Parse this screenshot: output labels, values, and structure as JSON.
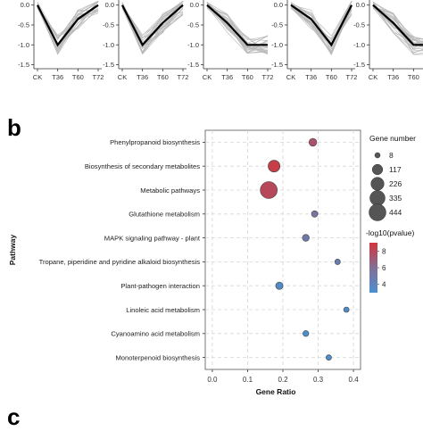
{
  "panel_b": {
    "label": "b"
  },
  "panel_c": {
    "label": "c"
  },
  "chart_data": [
    {
      "type": "line",
      "panel": "a",
      "categories": [
        "CK",
        "T36",
        "T60",
        "T72"
      ],
      "y_ticks": [
        0.0,
        -0.5,
        -1.0,
        -1.5
      ],
      "tick_labels": [
        "0.0",
        "-0.5",
        "-1.0",
        "-1.5"
      ],
      "ylim": [
        -1.6,
        0.15
      ],
      "subplots": [
        {
          "mean_profile": [
            0.0,
            -1.0,
            -0.35,
            0.0
          ]
        },
        {
          "mean_profile": [
            0.0,
            -1.0,
            -0.45,
            0.0
          ]
        },
        {
          "mean_profile": [
            0.0,
            -0.45,
            -1.0,
            -1.0
          ]
        },
        {
          "mean_profile": [
            0.0,
            -0.35,
            -1.0,
            0.0
          ]
        },
        {
          "mean_profile": [
            0.0,
            -0.45,
            -1.0,
            -1.0
          ]
        }
      ],
      "colors": {
        "mean": "#000000",
        "genes": "#b8b8b8"
      }
    },
    {
      "type": "scatter",
      "panel": "b",
      "xlabel": "Gene Ratio",
      "ylabel": "Pathway",
      "xlim": [
        -0.02,
        0.42
      ],
      "x_ticks": [
        0.0,
        0.1,
        0.2,
        0.3,
        0.4
      ],
      "x_tick_labels": [
        "0.0",
        "0.1",
        "0.2",
        "0.3",
        "0.4"
      ],
      "pathways": [
        {
          "name": "Phenylpropanoid biosynthesis",
          "gene_ratio": 0.285,
          "gene_number": 45,
          "neg_log10_p": 7.5
        },
        {
          "name": "Biosynthesis of secondary metabolites",
          "gene_ratio": 0.175,
          "gene_number": 170,
          "neg_log10_p": 8.6
        },
        {
          "name": "Metabolic pathways",
          "gene_ratio": 0.16,
          "gene_number": 444,
          "neg_log10_p": 8.0
        },
        {
          "name": "Glutathione metabolism",
          "gene_ratio": 0.29,
          "gene_number": 20,
          "neg_log10_p": 5.3
        },
        {
          "name": "MAPK signaling pathway - plant",
          "gene_ratio": 0.265,
          "gene_number": 28,
          "neg_log10_p": 5.0
        },
        {
          "name": "Tropane, piperidine and pyridine alkaloid biosynthesis",
          "gene_ratio": 0.355,
          "gene_number": 10,
          "neg_log10_p": 4.7
        },
        {
          "name": "Plant-pathogen interaction",
          "gene_ratio": 0.19,
          "gene_number": 35,
          "neg_log10_p": 3.5
        },
        {
          "name": "Linoleic acid metabolism",
          "gene_ratio": 0.38,
          "gene_number": 8,
          "neg_log10_p": 3.3
        },
        {
          "name": "Cyanoamino acid metabolism",
          "gene_ratio": 0.265,
          "gene_number": 14,
          "neg_log10_p": 3.2
        },
        {
          "name": "Monoterpenoid biosynthesis",
          "gene_ratio": 0.33,
          "gene_number": 9,
          "neg_log10_p": 3.1
        }
      ],
      "size_legend": {
        "title": "Gene number",
        "values": [
          8,
          117,
          226,
          335,
          444
        ]
      },
      "color_legend": {
        "title": "-log10(pvalue)",
        "ticks": [
          8,
          6,
          4
        ],
        "range": [
          3,
          9
        ],
        "low_color": "#4a8fd0",
        "high_color": "#d2353c"
      },
      "grid": true,
      "colors": {
        "panel_bg": "#ffffff",
        "grid": "#d6d6d6",
        "point_edge": "#444444"
      }
    }
  ]
}
